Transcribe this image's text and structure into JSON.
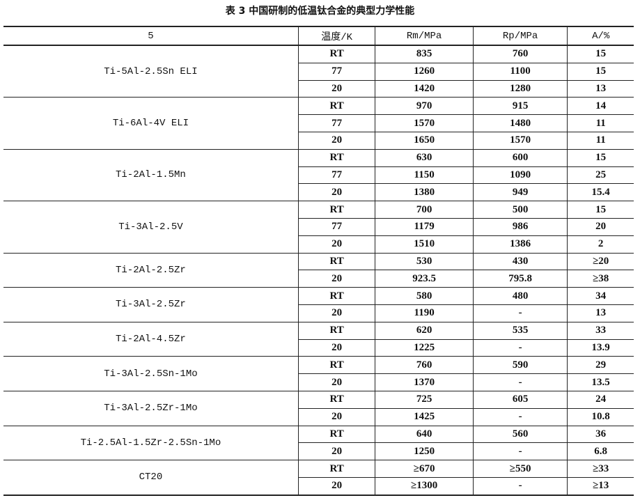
{
  "title": "表 3   中国研制的低温钛合金的典型力学性能",
  "headers": [
    "5",
    "温度/K",
    "Rm/MPa",
    "Rp/MPa",
    "A/%"
  ],
  "alloys": [
    {
      "name": "Ti-5Al-2.5Sn ELI",
      "rows": [
        [
          "RT",
          "835",
          "760",
          "15"
        ],
        [
          "77",
          "1260",
          "1100",
          "15"
        ],
        [
          "20",
          "1420",
          "1280",
          "13"
        ]
      ]
    },
    {
      "name": "Ti-6Al-4V ELI",
      "rows": [
        [
          "RT",
          "970",
          "915",
          "14"
        ],
        [
          "77",
          "1570",
          "1480",
          "11"
        ],
        [
          "20",
          "1650",
          "1570",
          "11"
        ]
      ]
    },
    {
      "name": "Ti-2Al-1.5Mn",
      "rows": [
        [
          "RT",
          "630",
          "600",
          "15"
        ],
        [
          "77",
          "1150",
          "1090",
          "25"
        ],
        [
          "20",
          "1380",
          "949",
          "15.4"
        ]
      ]
    },
    {
      "name": "Ti-3Al-2.5V",
      "rows": [
        [
          "RT",
          "700",
          "500",
          "15"
        ],
        [
          "77",
          "1179",
          "986",
          "20"
        ],
        [
          "20",
          "1510",
          "1386",
          "2"
        ]
      ]
    },
    {
      "name": "Ti-2Al-2.5Zr",
      "rows": [
        [
          "RT",
          "530",
          "430",
          "≥20"
        ],
        [
          "20",
          "923.5",
          "795.8",
          "≥38"
        ]
      ]
    },
    {
      "name": "Ti-3Al-2.5Zr",
      "rows": [
        [
          "RT",
          "580",
          "480",
          "34"
        ],
        [
          "20",
          "1190",
          "-",
          "13"
        ]
      ]
    },
    {
      "name": "Ti-2Al-4.5Zr",
      "rows": [
        [
          "RT",
          "620",
          "535",
          "33"
        ],
        [
          "20",
          "1225",
          "-",
          "13.9"
        ]
      ]
    },
    {
      "name": "Ti-3Al-2.5Sn-1Mo",
      "rows": [
        [
          "RT",
          "760",
          "590",
          "29"
        ],
        [
          "20",
          "1370",
          "-",
          "13.5"
        ]
      ]
    },
    {
      "name": "Ti-3Al-2.5Zr-1Mo",
      "rows": [
        [
          "RT",
          "725",
          "605",
          "24"
        ],
        [
          "20",
          "1425",
          "-",
          "10.8"
        ]
      ]
    },
    {
      "name": "Ti-2.5Al-1.5Zr-2.5Sn-1Mo",
      "rows": [
        [
          "RT",
          "640",
          "560",
          "36"
        ],
        [
          "20",
          "1250",
          "-",
          "6.8"
        ]
      ]
    },
    {
      "name": "CT20",
      "rows": [
        [
          "RT",
          "≥670",
          "≥550",
          "≥33"
        ],
        [
          "20",
          "≥1300",
          "-",
          "≥13"
        ]
      ]
    }
  ]
}
